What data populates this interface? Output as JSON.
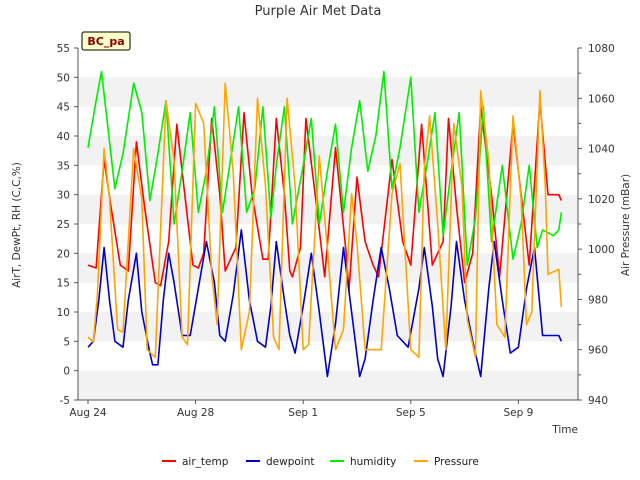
{
  "chart_data": {
    "type": "line",
    "title": "Purple Air Met Data",
    "xlabel": "Time",
    "ylabel": "AirT, DewPt, RH (C,C,%)",
    "y2label": "Air Pressure (mBar)",
    "site_label": "BC_pa",
    "x_ticks": [
      {
        "day": 0,
        "label": "Aug 24"
      },
      {
        "day": 4,
        "label": "Aug 28"
      },
      {
        "day": 8,
        "label": "Sep 1"
      },
      {
        "day": 12,
        "label": "Sep 5"
      },
      {
        "day": 16,
        "label": "Sep 9"
      }
    ],
    "xlim_days": [
      0,
      18
    ],
    "ylim": [
      -5,
      55
    ],
    "y_ticks": [
      -5,
      0,
      5,
      10,
      15,
      20,
      25,
      30,
      35,
      40,
      45,
      50,
      55
    ],
    "y2lim": [
      940,
      1080
    ],
    "y2_ticks": [
      940,
      960,
      980,
      1000,
      1020,
      1040,
      1060,
      1080
    ],
    "grid": "horizontal alternating bands",
    "legend_position": "bottom",
    "series": [
      {
        "name": "air_temp",
        "color": "#ff0000",
        "axis": "left",
        "points": [
          [
            0.0,
            18
          ],
          [
            0.3,
            17.5
          ],
          [
            0.6,
            36
          ],
          [
            0.85,
            28
          ],
          [
            1.2,
            18
          ],
          [
            1.5,
            17
          ],
          [
            1.8,
            39
          ],
          [
            2.1,
            28
          ],
          [
            2.5,
            15
          ],
          [
            2.7,
            14.5
          ],
          [
            3.0,
            22
          ],
          [
            3.3,
            42
          ],
          [
            3.6,
            30
          ],
          [
            3.9,
            18
          ],
          [
            4.1,
            17.5
          ],
          [
            4.3,
            20
          ],
          [
            4.6,
            43
          ],
          [
            4.9,
            30
          ],
          [
            5.1,
            17
          ],
          [
            5.5,
            21
          ],
          [
            5.8,
            44
          ],
          [
            6.1,
            30
          ],
          [
            6.5,
            19
          ],
          [
            6.7,
            19
          ],
          [
            7.0,
            43
          ],
          [
            7.3,
            30
          ],
          [
            7.5,
            17
          ],
          [
            7.6,
            16
          ],
          [
            7.9,
            21
          ],
          [
            8.1,
            43
          ],
          [
            8.5,
            28
          ],
          [
            8.8,
            16
          ],
          [
            9.2,
            38
          ],
          [
            9.6,
            20
          ],
          [
            9.7,
            13.5
          ],
          [
            10.0,
            33
          ],
          [
            10.3,
            22
          ],
          [
            10.6,
            18
          ],
          [
            10.8,
            16
          ],
          [
            11.3,
            36
          ],
          [
            11.7,
            22
          ],
          [
            12.0,
            18
          ],
          [
            12.4,
            42
          ],
          [
            12.8,
            18
          ],
          [
            13.2,
            22
          ],
          [
            13.4,
            43
          ],
          [
            13.7,
            28
          ],
          [
            14.0,
            15
          ],
          [
            14.3,
            20
          ],
          [
            14.6,
            45
          ],
          [
            15.0,
            30
          ],
          [
            15.3,
            16
          ],
          [
            15.8,
            42
          ],
          [
            16.1,
            30
          ],
          [
            16.4,
            18
          ],
          [
            16.8,
            46
          ],
          [
            17.1,
            30
          ],
          [
            17.5,
            30
          ],
          [
            17.6,
            29
          ]
        ]
      },
      {
        "name": "dewpoint",
        "color": "#0000cc",
        "axis": "left",
        "points": [
          [
            0.0,
            4
          ],
          [
            0.2,
            5
          ],
          [
            0.4,
            12
          ],
          [
            0.6,
            21
          ],
          [
            0.8,
            12
          ],
          [
            1.0,
            5
          ],
          [
            1.3,
            4
          ],
          [
            1.5,
            12
          ],
          [
            1.8,
            20
          ],
          [
            2.0,
            10
          ],
          [
            2.3,
            3
          ],
          [
            2.4,
            1
          ],
          [
            2.6,
            1
          ],
          [
            2.8,
            12
          ],
          [
            3.0,
            20
          ],
          [
            3.2,
            15
          ],
          [
            3.5,
            6
          ],
          [
            3.8,
            6
          ],
          [
            4.1,
            14
          ],
          [
            4.4,
            22
          ],
          [
            4.7,
            15
          ],
          [
            4.9,
            6
          ],
          [
            5.1,
            5
          ],
          [
            5.4,
            13
          ],
          [
            5.7,
            24
          ],
          [
            6.0,
            12
          ],
          [
            6.3,
            5
          ],
          [
            6.6,
            4
          ],
          [
            6.8,
            11
          ],
          [
            7.0,
            22
          ],
          [
            7.3,
            12
          ],
          [
            7.5,
            6
          ],
          [
            7.7,
            3
          ],
          [
            8.0,
            11
          ],
          [
            8.3,
            20
          ],
          [
            8.6,
            10
          ],
          [
            8.9,
            -1
          ],
          [
            9.2,
            8
          ],
          [
            9.5,
            21
          ],
          [
            9.8,
            10
          ],
          [
            10.1,
            -1
          ],
          [
            10.3,
            2
          ],
          [
            10.6,
            12
          ],
          [
            10.9,
            21
          ],
          [
            11.2,
            14
          ],
          [
            11.5,
            6
          ],
          [
            11.9,
            4
          ],
          [
            12.3,
            14
          ],
          [
            12.5,
            21
          ],
          [
            12.8,
            11
          ],
          [
            13.0,
            2
          ],
          [
            13.2,
            -1
          ],
          [
            13.5,
            11
          ],
          [
            13.7,
            22
          ],
          [
            14.0,
            12
          ],
          [
            14.3,
            5
          ],
          [
            14.6,
            -1
          ],
          [
            14.9,
            14
          ],
          [
            15.1,
            22
          ],
          [
            15.4,
            12
          ],
          [
            15.7,
            3
          ],
          [
            16.0,
            4
          ],
          [
            16.3,
            14
          ],
          [
            16.6,
            21
          ],
          [
            16.9,
            6
          ],
          [
            17.0,
            6
          ],
          [
            17.5,
            6
          ],
          [
            17.6,
            5
          ]
        ]
      },
      {
        "name": "humidity",
        "color": "#00ee00",
        "axis": "left",
        "points": [
          [
            0.0,
            38
          ],
          [
            0.3,
            46
          ],
          [
            0.5,
            51
          ],
          [
            0.75,
            41
          ],
          [
            1.0,
            31
          ],
          [
            1.3,
            37
          ],
          [
            1.7,
            49
          ],
          [
            2.0,
            44
          ],
          [
            2.3,
            29
          ],
          [
            2.6,
            37
          ],
          [
            2.9,
            46
          ],
          [
            3.2,
            25
          ],
          [
            3.5,
            34
          ],
          [
            3.8,
            44
          ],
          [
            4.1,
            27
          ],
          [
            4.4,
            34
          ],
          [
            4.7,
            45
          ],
          [
            5.0,
            27
          ],
          [
            5.3,
            36
          ],
          [
            5.6,
            45
          ],
          [
            5.9,
            27
          ],
          [
            6.2,
            31
          ],
          [
            6.5,
            45
          ],
          [
            6.8,
            26
          ],
          [
            7.0,
            35
          ],
          [
            7.3,
            45
          ],
          [
            7.6,
            25
          ],
          [
            8.0,
            35
          ],
          [
            8.3,
            43
          ],
          [
            8.6,
            25
          ],
          [
            8.9,
            34
          ],
          [
            9.2,
            42
          ],
          [
            9.5,
            27
          ],
          [
            9.8,
            38
          ],
          [
            10.1,
            46
          ],
          [
            10.4,
            34
          ],
          [
            10.7,
            40
          ],
          [
            11.0,
            51
          ],
          [
            11.3,
            31
          ],
          [
            11.6,
            38
          ],
          [
            12.0,
            50
          ],
          [
            12.3,
            27
          ],
          [
            12.6,
            35
          ],
          [
            12.9,
            44
          ],
          [
            13.2,
            23
          ],
          [
            13.5,
            34
          ],
          [
            13.8,
            44
          ],
          [
            14.1,
            18
          ],
          [
            14.4,
            26
          ],
          [
            14.7,
            45
          ],
          [
            15.0,
            22
          ],
          [
            15.4,
            35
          ],
          [
            15.8,
            19
          ],
          [
            16.1,
            25
          ],
          [
            16.4,
            35
          ],
          [
            16.7,
            21
          ],
          [
            16.9,
            24
          ],
          [
            17.3,
            23
          ],
          [
            17.5,
            24
          ],
          [
            17.6,
            27
          ]
        ]
      },
      {
        "name": "Pressure",
        "color": "#ffa500",
        "axis": "right",
        "points": [
          [
            0.0,
            965
          ],
          [
            0.2,
            963
          ],
          [
            0.35,
            982
          ],
          [
            0.6,
            1040
          ],
          [
            0.8,
            1020
          ],
          [
            1.1,
            968
          ],
          [
            1.3,
            967
          ],
          [
            1.7,
            1040
          ],
          [
            2.0,
            1020
          ],
          [
            2.2,
            960
          ],
          [
            2.5,
            957
          ],
          [
            2.9,
            1059
          ],
          [
            3.2,
            1035
          ],
          [
            3.5,
            965
          ],
          [
            3.7,
            962
          ],
          [
            4.0,
            1058
          ],
          [
            4.3,
            1050
          ],
          [
            4.6,
            990
          ],
          [
            4.8,
            970
          ],
          [
            5.1,
            1066
          ],
          [
            5.4,
            1030
          ],
          [
            5.7,
            960
          ],
          [
            6.0,
            975
          ],
          [
            6.3,
            1060
          ],
          [
            6.6,
            1025
          ],
          [
            6.9,
            965
          ],
          [
            7.1,
            960
          ],
          [
            7.4,
            1060
          ],
          [
            7.7,
            1025
          ],
          [
            8.0,
            960
          ],
          [
            8.2,
            962
          ],
          [
            8.6,
            1037
          ],
          [
            8.9,
            1000
          ],
          [
            9.2,
            960
          ],
          [
            9.5,
            968
          ],
          [
            9.8,
            1022
          ],
          [
            10.0,
            1002
          ],
          [
            10.3,
            960
          ],
          [
            10.6,
            960
          ],
          [
            10.9,
            960
          ],
          [
            11.3,
            1022
          ],
          [
            11.6,
            1034
          ],
          [
            12.0,
            960
          ],
          [
            12.3,
            957
          ],
          [
            12.5,
            1032
          ],
          [
            12.7,
            1053
          ],
          [
            13.0,
            1010
          ],
          [
            13.3,
            960
          ],
          [
            13.6,
            1050
          ],
          [
            13.9,
            1025
          ],
          [
            14.1,
            972
          ],
          [
            14.4,
            957
          ],
          [
            14.6,
            1063
          ],
          [
            14.9,
            1035
          ],
          [
            15.2,
            970
          ],
          [
            15.5,
            965
          ],
          [
            15.8,
            1053
          ],
          [
            16.1,
            1020
          ],
          [
            16.3,
            970
          ],
          [
            16.5,
            975
          ],
          [
            16.8,
            1063
          ],
          [
            17.0,
            1025
          ],
          [
            17.1,
            990
          ],
          [
            17.5,
            992
          ],
          [
            17.6,
            977
          ]
        ]
      }
    ]
  }
}
